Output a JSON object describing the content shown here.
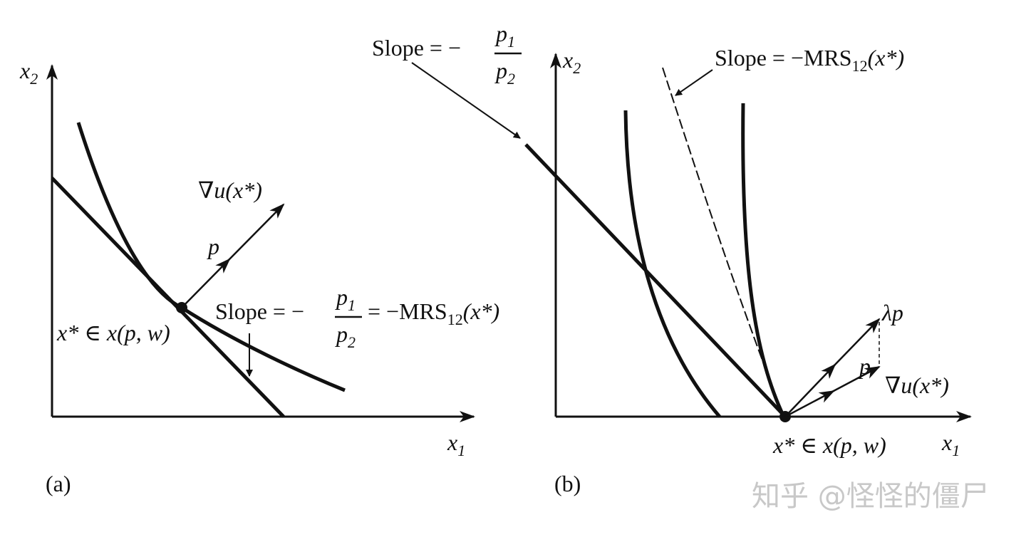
{
  "panel_a": {
    "label": "(a)",
    "x_axis": [
      "x",
      "1"
    ],
    "y_axis": [
      "x",
      "2"
    ],
    "gradient": "∇u(x*)",
    "price": "p",
    "optimum": "x* ∈ x(p, w)",
    "slope": {
      "lead": "Slope = −",
      "num": [
        "p",
        "1"
      ],
      "den": [
        "p",
        "2"
      ],
      "tail": [
        "= −MRS",
        "12",
        "(x*)"
      ]
    }
  },
  "panel_b": {
    "label": "(b)",
    "x_axis": [
      "x",
      "1"
    ],
    "y_axis": [
      "x",
      "2"
    ],
    "gradient": "∇u(x*)",
    "price": "p",
    "scaled_price": "λp",
    "optimum": "x* ∈ x(p, w)",
    "slope_budget": {
      "lead": "Slope = −",
      "num": [
        "p",
        "1"
      ],
      "den": [
        "p",
        "2"
      ]
    },
    "slope_mrs": [
      "Slope = −MRS",
      "12",
      "(x*)"
    ]
  },
  "watermark": "知乎 @怪怪的僵尸"
}
